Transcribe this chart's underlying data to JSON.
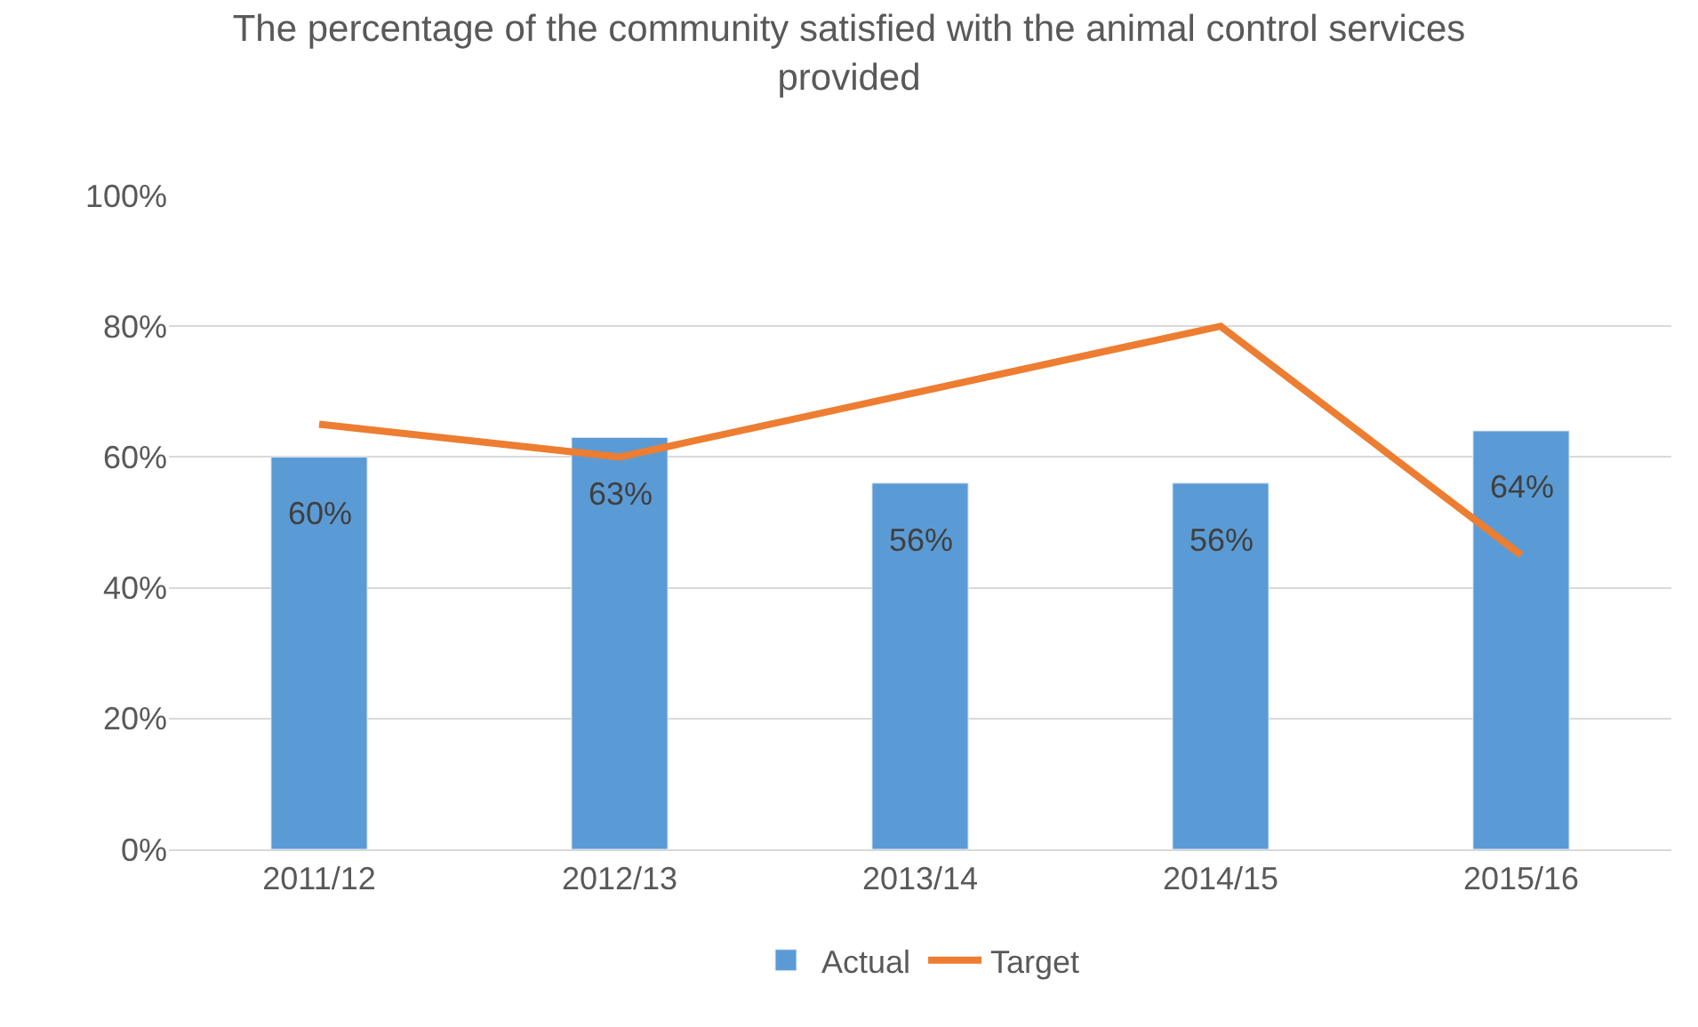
{
  "chart_data": {
    "type": "bar",
    "title": "The percentage of the community satisfied with the animal control services provided",
    "categories": [
      "2011/12",
      "2012/13",
      "2013/14",
      "2014/15",
      "2015/16"
    ],
    "series": [
      {
        "name": "Actual",
        "color": "#5b9bd5",
        "values": [
          60,
          63,
          56,
          56,
          64
        ],
        "value_labels": [
          "60%",
          "63%",
          "56%",
          "56%",
          "64%"
        ]
      },
      {
        "name": "Target",
        "type": "line",
        "color": "#ed7d31",
        "values": [
          65,
          60,
          70,
          80,
          45
        ]
      }
    ],
    "ylim": [
      0,
      100
    ],
    "yticks": [
      {
        "value": 0,
        "label": "0%"
      },
      {
        "value": 20,
        "label": "20%"
      },
      {
        "value": 40,
        "label": "40%"
      },
      {
        "value": 60,
        "label": "60%"
      },
      {
        "value": 80,
        "label": "80%"
      },
      {
        "value": 100,
        "label": "100%"
      }
    ],
    "grid": "y",
    "legend": "bottom"
  }
}
